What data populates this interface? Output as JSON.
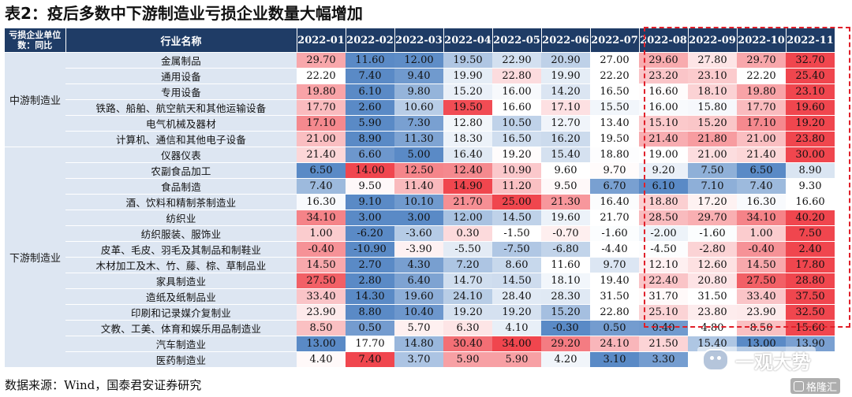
{
  "title": "表2：疫后多数中下游制造业亏损企业数量大幅增加",
  "header": {
    "category_col": "亏损企业单位数：同比",
    "industry_col": "行业名称",
    "months": [
      "2022-01",
      "2022-02",
      "2022-03",
      "2022-04",
      "2022-05",
      "2022-06",
      "2022-07",
      "2022-08",
      "2022-09",
      "2022-10",
      "2022-11"
    ]
  },
  "groups": [
    {
      "category": "中游制造业",
      "rows": [
        {
          "industry": "金属制品",
          "values": [
            29.7,
            11.6,
            12.0,
            19.5,
            22.9,
            20.9,
            27.0,
            29.6,
            27.8,
            29.7,
            32.7
          ]
        },
        {
          "industry": "通用设备",
          "values": [
            22.2,
            7.4,
            9.4,
            19.9,
            22.8,
            19.9,
            22.2,
            23.2,
            23.1,
            22.2,
            25.4
          ]
        },
        {
          "industry": "专用设备",
          "values": [
            19.8,
            6.1,
            9.8,
            15.2,
            16.0,
            14.2,
            16.5,
            16.6,
            18.1,
            19.8,
            23.1
          ]
        },
        {
          "industry": "铁路、船舶、航空航天和其他运输设备",
          "values": [
            17.7,
            2.6,
            10.6,
            19.5,
            16.6,
            17.1,
            15.5,
            16.0,
            15.8,
            17.7,
            19.6
          ]
        },
        {
          "industry": "电气机械及器材",
          "values": [
            17.1,
            5.9,
            7.3,
            12.8,
            10.5,
            12.7,
            13.4,
            15.1,
            15.2,
            17.1,
            19.2
          ]
        },
        {
          "industry": "计算机、通信和其他电子设备",
          "values": [
            21.0,
            8.9,
            11.3,
            18.3,
            16.5,
            16.2,
            19.5,
            21.4,
            21.8,
            21.0,
            23.8
          ]
        }
      ]
    },
    {
      "category": "下游制造业",
      "rows": [
        {
          "industry": "仪器仪表",
          "values": [
            21.4,
            6.6,
            5.0,
            16.4,
            19.2,
            15.4,
            18.8,
            19.0,
            21.0,
            21.4,
            30.0
          ]
        },
        {
          "industry": "农副食品加工",
          "values": [
            6.5,
            14.0,
            12.5,
            12.4,
            10.9,
            9.6,
            9.7,
            9.2,
            7.5,
            6.5,
            8.9
          ]
        },
        {
          "industry": "食品制造",
          "values": [
            7.4,
            9.5,
            11.4,
            14.9,
            11.2,
            9.5,
            6.7,
            6.1,
            7.1,
            7.4,
            9.3
          ]
        },
        {
          "industry": "酒、饮料和精制茶制造业",
          "values": [
            16.3,
            9.1,
            10.1,
            21.7,
            25.0,
            21.3,
            16.4,
            18.8,
            17.2,
            16.3,
            16.6
          ]
        },
        {
          "industry": "纺织业",
          "values": [
            34.1,
            3.0,
            3.0,
            12.0,
            14.5,
            19.6,
            21.7,
            28.5,
            29.7,
            34.1,
            40.2
          ]
        },
        {
          "industry": "纺织服装、服饰业",
          "values": [
            1.0,
            -6.2,
            -3.6,
            0.3,
            -1.5,
            -0.7,
            -1.6,
            -2.0,
            -1.6,
            1.0,
            7.5
          ]
        },
        {
          "industry": "皮革、毛皮、羽毛及其制品和制鞋业",
          "values": [
            -0.4,
            -10.9,
            -3.9,
            -5.5,
            -7.5,
            -6.8,
            -4.4,
            -4.5,
            -2.8,
            -0.4,
            2.4
          ]
        },
        {
          "industry": "木材加工及木、竹、藤、棕、草制品业",
          "values": [
            14.5,
            2.7,
            4.3,
            7.2,
            8.6,
            11.6,
            9.7,
            12.1,
            12.6,
            14.5,
            17.8
          ]
        },
        {
          "industry": "家具制造业",
          "values": [
            27.5,
            2.8,
            6.4,
            14.7,
            14.5,
            18.1,
            19.4,
            22.4,
            20.8,
            27.5,
            28.8
          ]
        },
        {
          "industry": "造纸及纸制品业",
          "values": [
            33.4,
            14.3,
            19.6,
            24.1,
            28.4,
            28.3,
            31.5,
            31.7,
            31.5,
            33.4,
            37.5
          ]
        },
        {
          "industry": "印刷和记录媒介复制业",
          "values": [
            23.9,
            8.8,
            10.4,
            19.2,
            19.2,
            15.2,
            22.8,
            25.1,
            23.8,
            23.9,
            32.5
          ]
        },
        {
          "industry": "文教、工美、体育和娱乐用品制造业",
          "values": [
            8.5,
            0.5,
            5.7,
            6.3,
            4.1,
            -0.3,
            0.5,
            0.4,
            4.8,
            8.5,
            15.6
          ]
        },
        {
          "industry": "汽车制造业",
          "values": [
            13.0,
            17.7,
            14.8,
            30.4,
            34.0,
            29.2,
            24.1,
            21.5,
            15.4,
            13.0,
            13.9
          ]
        },
        {
          "industry": "医药制造业",
          "values": [
            4.4,
            7.4,
            3.7,
            5.9,
            5.9,
            4.2,
            3.1,
            3.3,
            null,
            null,
            null
          ]
        }
      ]
    }
  ],
  "source": "数据来源：Wind，国泰君安证券研究",
  "watermark": "一观大势",
  "brand": "格隆汇",
  "colors": {
    "red": "#f0464e",
    "blue": "#5a8ac6",
    "white": "#ffffff",
    "header_bg": "#1f3c66",
    "label_bg": "#dde6f2",
    "outline": "#e0202a"
  }
}
